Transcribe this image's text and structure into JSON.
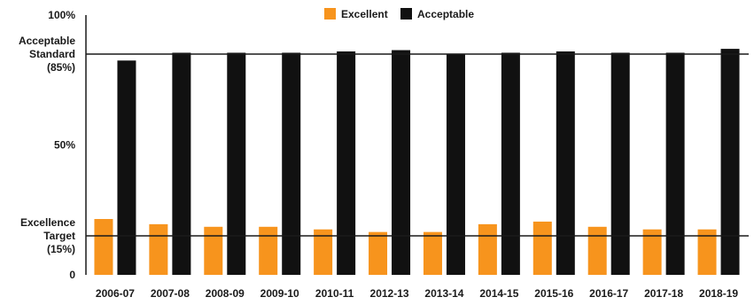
{
  "chart_data": {
    "type": "bar",
    "categories": [
      "2006-07",
      "2007-08",
      "2008-09",
      "2009-10",
      "2010-11",
      "2012-13",
      "2013-14",
      "2014-15",
      "2015-16",
      "2016-17",
      "2017-18",
      "2018-19"
    ],
    "series": [
      {
        "name": "Excellent",
        "color": "#f7941d",
        "values": [
          21.5,
          19.5,
          18.5,
          18.5,
          17.5,
          16.5,
          16.5,
          19.5,
          20.5,
          18.5,
          17.5,
          17.5
        ]
      },
      {
        "name": "Acceptable",
        "color": "#111111",
        "values": [
          82.5,
          85.5,
          85.5,
          85.5,
          86,
          86.5,
          85,
          85.5,
          86,
          85.5,
          85.5,
          87
        ]
      }
    ],
    "ylim": [
      0,
      100
    ],
    "y_ticks": [
      {
        "value": 100,
        "lines": [
          "100%"
        ]
      },
      {
        "value": 85,
        "lines": [
          "Acceptable",
          "Standard",
          "(85%)"
        ]
      },
      {
        "value": 50,
        "lines": [
          "50%"
        ]
      },
      {
        "value": 15,
        "lines": [
          "Excellence",
          "Target",
          "(15%)"
        ]
      },
      {
        "value": 0,
        "lines": [
          "0"
        ]
      }
    ],
    "reference_lines": [
      85,
      15
    ],
    "legend_position": "top-center",
    "grid": false
  }
}
